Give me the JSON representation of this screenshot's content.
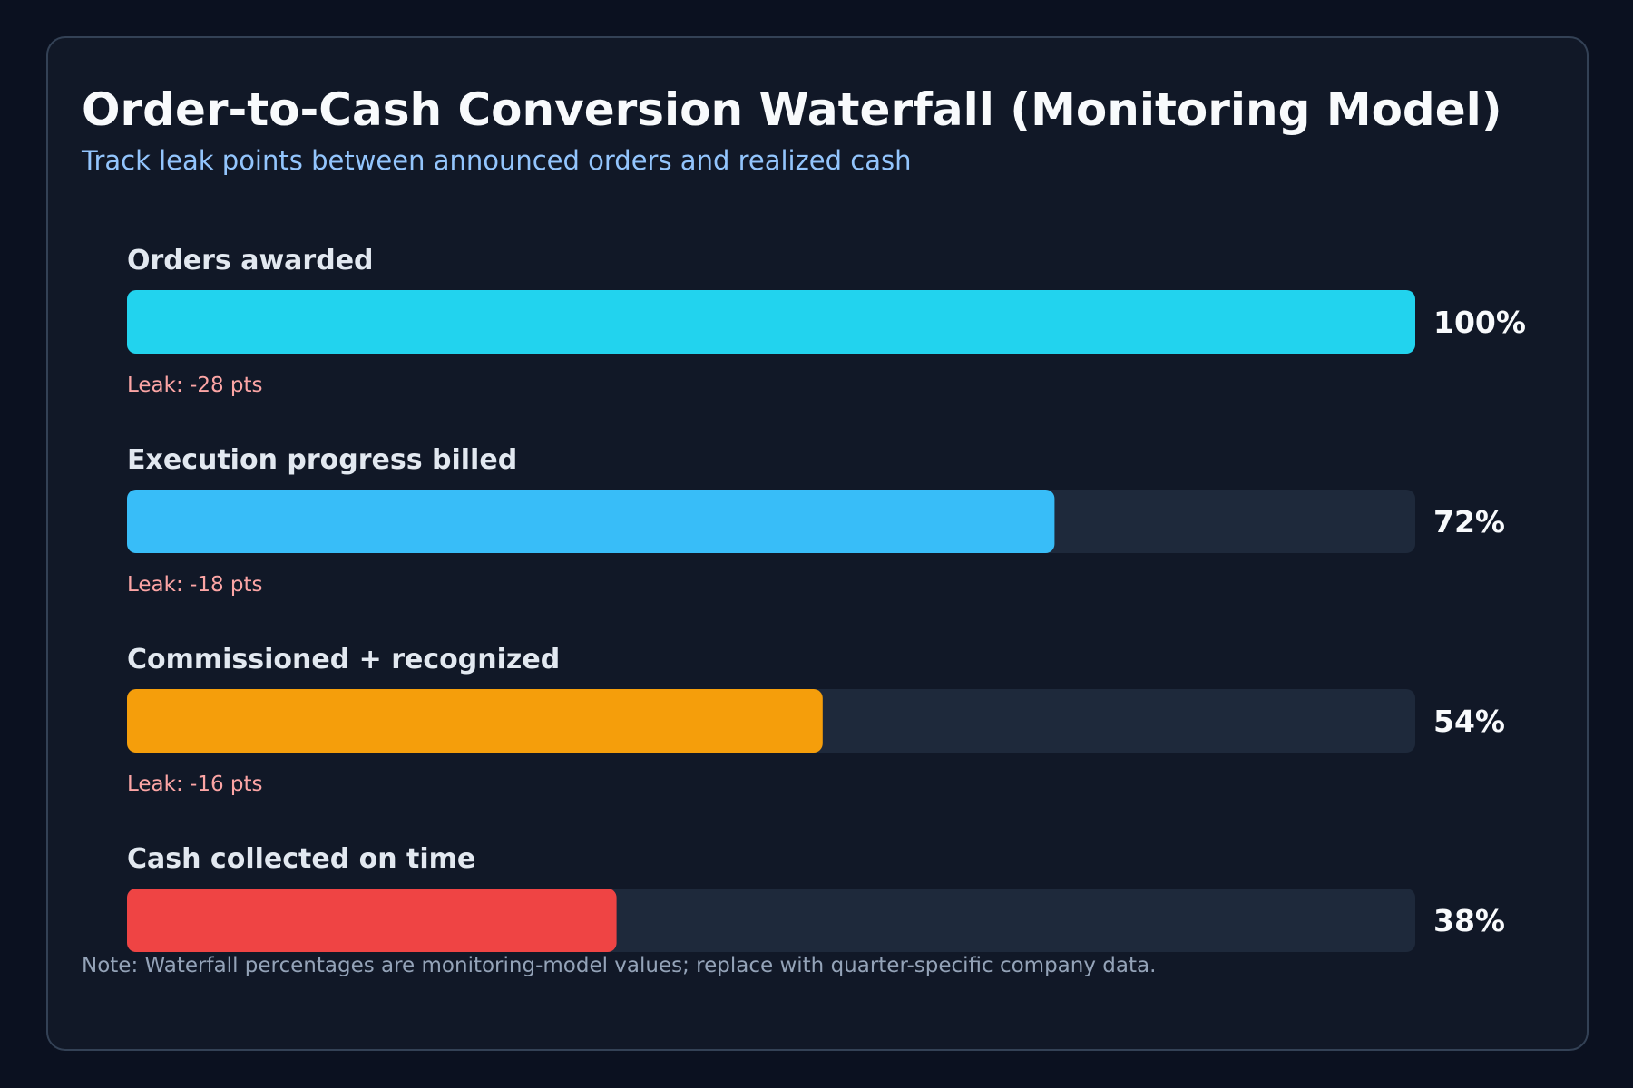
{
  "chart_data": {
    "type": "bar",
    "orientation": "horizontal",
    "title": "Order-to-Cash Conversion Waterfall (Monitoring Model)",
    "subtitle": "Track leak points between announced orders and realized cash",
    "categories": [
      "Orders awarded",
      "Execution progress billed",
      "Commissioned + recognized",
      "Cash collected on time"
    ],
    "values": [
      100,
      72,
      54,
      38
    ],
    "value_labels": [
      "100%",
      "72%",
      "54%",
      "38%"
    ],
    "colors": [
      "#22d3ee",
      "#38bdf8",
      "#f59e0b",
      "#ef4444"
    ],
    "xlim": [
      0,
      100
    ],
    "annotations": [
      "Leak: -28 pts",
      "Leak: -18 pts",
      "Leak: -16 pts"
    ],
    "note": "Note: Waterfall percentages are monitoring-model values; replace with quarter-specific company data."
  }
}
